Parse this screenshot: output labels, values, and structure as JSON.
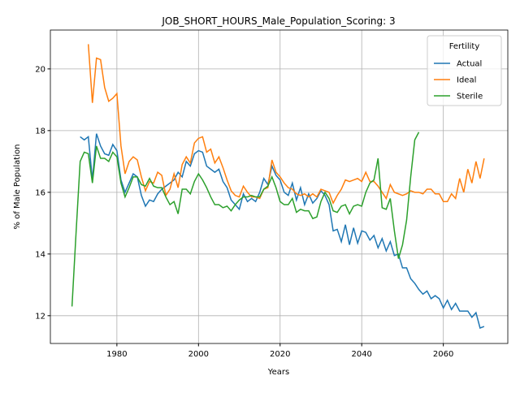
{
  "chart_data": {
    "type": "line",
    "title": "JOB_SHORT_HOURS_Male_Population_Scoring: 3",
    "xlabel": "Years",
    "ylabel": "% of Male Population",
    "x": [
      1969,
      1970,
      1971,
      1972,
      1973,
      1974,
      1975,
      1976,
      1977,
      1978,
      1979,
      1980,
      1981,
      1982,
      1983,
      1984,
      1985,
      1986,
      1987,
      1988,
      1989,
      1990,
      1991,
      1992,
      1993,
      1994,
      1995,
      1996,
      1997,
      1998,
      1999,
      2000,
      2001,
      2002,
      2003,
      2004,
      2005,
      2006,
      2007,
      2008,
      2009,
      2010,
      2011,
      2012,
      2013,
      2014,
      2015,
      2016,
      2017,
      2018,
      2019,
      2020,
      2021,
      2022,
      2023,
      2024,
      2025,
      2026,
      2027,
      2028,
      2029,
      2030,
      2031,
      2032,
      2033,
      2034,
      2035,
      2036,
      2037,
      2038,
      2039,
      2040,
      2041,
      2042,
      2043,
      2044,
      2045,
      2046,
      2047,
      2048,
      2049,
      2050,
      2051,
      2052,
      2053,
      2054,
      2055,
      2056,
      2057,
      2058,
      2059,
      2060,
      2061,
      2062,
      2063,
      2064,
      2065,
      2066,
      2067,
      2068,
      2069,
      2070
    ],
    "series": [
      {
        "name": "Actual",
        "color": "#1f77b4",
        "values": [
          null,
          null,
          17.8,
          17.7,
          17.8,
          16.4,
          17.9,
          17.5,
          17.25,
          17.2,
          17.55,
          17.35,
          16.4,
          16.0,
          16.3,
          16.6,
          16.5,
          15.9,
          15.55,
          15.75,
          15.7,
          15.95,
          16.1,
          16.2,
          16.3,
          16.4,
          16.65,
          16.5,
          17.0,
          16.85,
          17.25,
          17.35,
          17.3,
          16.85,
          16.75,
          16.65,
          16.75,
          16.35,
          16.15,
          15.75,
          15.6,
          15.45,
          15.95,
          15.7,
          15.8,
          15.7,
          16.0,
          16.45,
          16.25,
          16.85,
          16.55,
          16.4,
          16.0,
          15.9,
          16.3,
          15.75,
          16.15,
          15.6,
          15.95,
          15.65,
          15.8,
          16.05,
          15.9,
          15.6,
          14.75,
          14.8,
          14.4,
          14.95,
          14.3,
          14.85,
          14.35,
          14.75,
          14.7,
          14.45,
          14.6,
          14.2,
          14.5,
          14.1,
          14.4,
          13.95,
          14.0,
          13.55,
          13.55,
          13.2,
          13.05,
          12.85,
          12.7,
          12.8,
          12.55,
          12.65,
          12.55,
          12.25,
          12.5,
          12.2,
          12.4,
          12.15,
          12.15,
          12.15,
          11.95,
          12.1,
          11.6,
          11.65
        ]
      },
      {
        "name": "Ideal",
        "color": "#ff7f0e",
        "values": [
          null,
          null,
          null,
          null,
          20.8,
          18.9,
          20.35,
          20.3,
          19.4,
          18.95,
          19.05,
          19.2,
          17.5,
          16.6,
          17.0,
          17.15,
          17.05,
          16.5,
          16.05,
          16.35,
          16.3,
          16.65,
          16.55,
          15.9,
          16.1,
          16.6,
          16.15,
          16.9,
          17.15,
          16.95,
          17.6,
          17.75,
          17.8,
          17.3,
          17.4,
          16.95,
          17.15,
          16.8,
          16.4,
          16.05,
          15.9,
          15.85,
          16.2,
          16.0,
          15.85,
          15.85,
          15.8,
          16.1,
          16.15,
          17.05,
          16.65,
          16.5,
          16.3,
          16.15,
          16.1,
          15.95,
          15.9,
          15.95,
          15.85,
          15.95,
          15.85,
          16.1,
          16.05,
          16.0,
          15.65,
          15.9,
          16.1,
          16.4,
          16.35,
          16.4,
          16.45,
          16.35,
          16.65,
          16.35,
          16.35,
          16.2,
          16.0,
          15.8,
          16.25,
          16.0,
          15.95,
          15.9,
          15.95,
          16.05,
          16.0,
          16.0,
          15.95,
          16.1,
          16.1,
          15.95,
          15.95,
          15.7,
          15.7,
          15.95,
          15.8,
          16.45,
          16.0,
          16.75,
          16.3,
          17.0,
          16.45,
          17.1
        ]
      },
      {
        "name": "Sterile",
        "color": "#2ca02c",
        "values": [
          12.3,
          14.7,
          17.0,
          17.3,
          17.25,
          16.3,
          17.5,
          17.1,
          17.1,
          17.0,
          17.3,
          17.15,
          16.3,
          15.85,
          16.15,
          16.5,
          16.5,
          16.25,
          16.2,
          16.45,
          16.2,
          16.15,
          16.15,
          15.85,
          15.6,
          15.7,
          15.3,
          16.1,
          16.1,
          15.95,
          16.35,
          16.6,
          16.4,
          16.15,
          15.85,
          15.6,
          15.6,
          15.5,
          15.55,
          15.4,
          15.6,
          15.75,
          15.85,
          15.85,
          15.9,
          15.85,
          15.85,
          16.1,
          16.2,
          16.5,
          16.15,
          15.7,
          15.6,
          15.6,
          15.8,
          15.35,
          15.45,
          15.4,
          15.4,
          15.15,
          15.2,
          15.7,
          16.0,
          15.8,
          15.4,
          15.35,
          15.55,
          15.6,
          15.3,
          15.55,
          15.6,
          15.55,
          16.0,
          16.3,
          16.4,
          17.1,
          15.5,
          15.45,
          15.8,
          14.75,
          13.85,
          14.3,
          15.1,
          16.5,
          17.7,
          17.95,
          null,
          null,
          null,
          null,
          null,
          null,
          null,
          null,
          null,
          null,
          null,
          null,
          null,
          null,
          null,
          null
        ]
      }
    ],
    "legend_title": "Fertility",
    "legend": "upper right",
    "grid": true,
    "xlim": [
      1963.7,
      2075.8
    ],
    "xticks": [
      1980,
      2000,
      2020,
      2040,
      2060
    ],
    "ylim": [
      11.1,
      21.26
    ],
    "yticks": [
      12,
      14,
      16,
      18,
      20
    ]
  }
}
